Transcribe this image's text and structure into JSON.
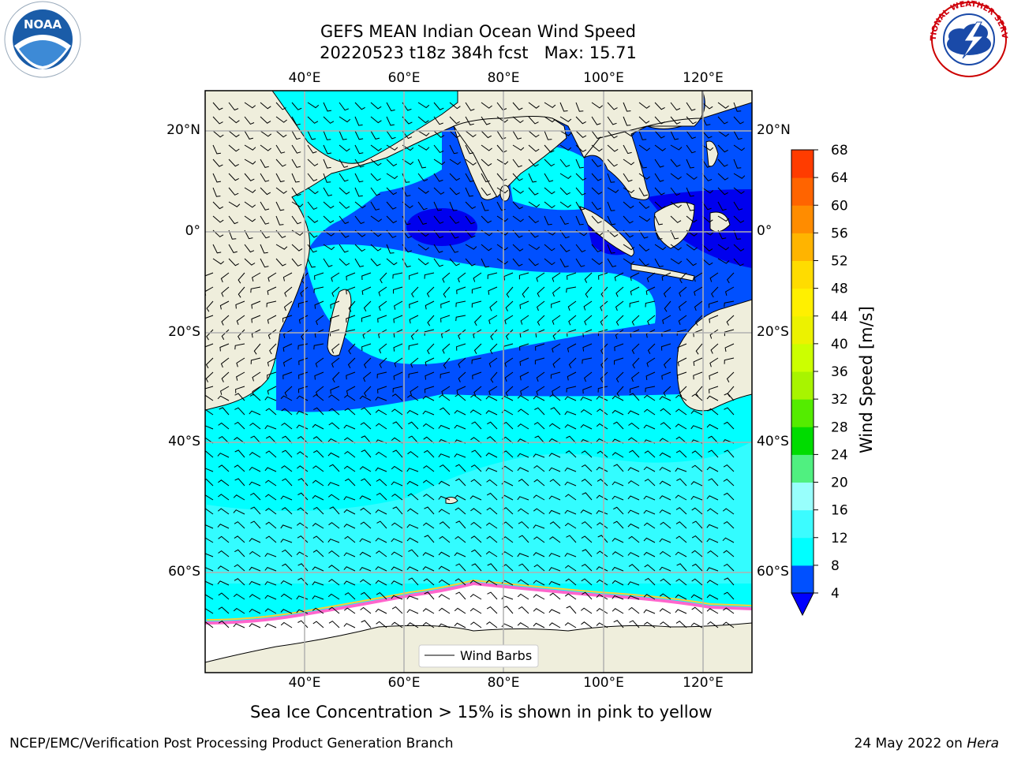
{
  "title": {
    "line1": "GEFS MEAN Indian Ocean Wind Speed",
    "line2": "20220523 t18z 384h fcst   Max: 15.71"
  },
  "axes": {
    "lon_ticks": [
      "40°E",
      "60°E",
      "80°E",
      "100°E",
      "120°E"
    ],
    "lat_ticks": [
      "20°N",
      "0°",
      "20°S",
      "40°S",
      "60°S"
    ]
  },
  "legend": {
    "label": "Wind Barbs"
  },
  "colorbar": {
    "title": "Wind Speed [m/s]",
    "ticks": [
      "4",
      "8",
      "12",
      "16",
      "20",
      "24",
      "28",
      "32",
      "36",
      "40",
      "44",
      "48",
      "52",
      "56",
      "60",
      "64",
      "68"
    ],
    "colors": [
      "#0050ff",
      "#00ffff",
      "#3cfcff",
      "#98fffc",
      "#50f080",
      "#00dc00",
      "#54ec00",
      "#a8f400",
      "#ccff00",
      "#ecf200",
      "#fff000",
      "#ffdc00",
      "#ffb400",
      "#ff8c00",
      "#ff6400",
      "#ff3c00",
      "#ff0000"
    ],
    "under_color": "#0000ff"
  },
  "map_colors": {
    "land": "#efeedc",
    "ice": "#ffffff",
    "speed_4_8": "#0050ff",
    "speed_0_4": "#0000ee",
    "speed_8_12": "#00ffff",
    "speed_12_16": "#3cfcff",
    "ice_edge": [
      "#ff66cc",
      "#ffcc33"
    ]
  },
  "caption": "Sea Ice Concentration > 15% is shown in pink to yellow",
  "footer": {
    "left": "NCEP/EMC/Verification Post Processing Product Generation Branch",
    "right_prefix": "24 May 2022 on ",
    "right_machine": "Hera"
  },
  "logos": {
    "left": "NOAA",
    "right": "NATIONAL WEATHER SERVICE"
  }
}
